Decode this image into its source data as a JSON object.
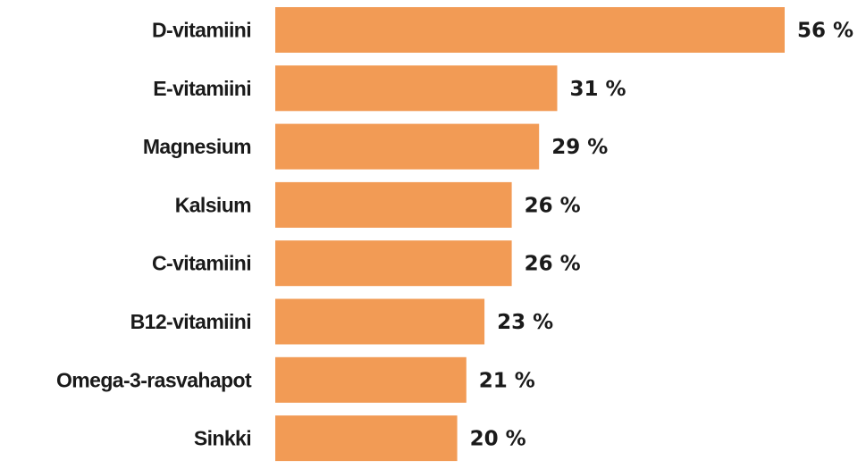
{
  "chart_data": {
    "type": "bar",
    "orientation": "horizontal",
    "categories": [
      "D-vitamiini",
      "E-vitamiini",
      "Magnesium",
      "Kalsium",
      "C-vitamiini",
      "B12-vitamiini",
      "Omega-3-rasvahapot",
      "Sinkki"
    ],
    "values": [
      56,
      31,
      29,
      26,
      26,
      23,
      21,
      20
    ],
    "value_labels": [
      "56 %",
      "31 %",
      "29 %",
      "26 %",
      "26 %",
      "23 %",
      "21 %",
      "20 %"
    ],
    "bar_color": "#f29b55",
    "text_color": "#1a1a1a",
    "grid": false,
    "legend": "none",
    "xlim": [
      0,
      56
    ]
  }
}
